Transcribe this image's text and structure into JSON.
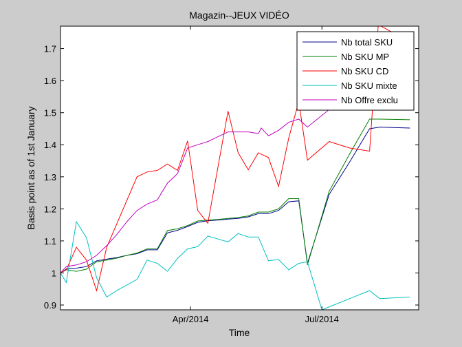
{
  "chart_data": {
    "type": "line",
    "title": "Magazin--JEUX VIDÉO",
    "xlabel": "Time",
    "ylabel": "Basis point as of 1st January",
    "xlim": [
      "2014-01-01",
      "2014-09-06"
    ],
    "ylim": [
      0.885,
      1.77
    ],
    "grid": false,
    "legend_position": "top-right",
    "x_ticks": [
      {
        "date": "2014-04-01",
        "label": "Apr/2014"
      },
      {
        "date": "2014-07-01",
        "label": "Jul/2014"
      }
    ],
    "y_ticks": [
      {
        "value": 0.9,
        "label": "0.9"
      },
      {
        "value": 1.0,
        "label": "1"
      },
      {
        "value": 1.1,
        "label": "1.1"
      },
      {
        "value": 1.2,
        "label": "1.2"
      },
      {
        "value": 1.3,
        "label": "1.3"
      },
      {
        "value": 1.4,
        "label": "1.4"
      },
      {
        "value": 1.5,
        "label": "1.5"
      },
      {
        "value": 1.6,
        "label": "1.6"
      },
      {
        "value": 1.7,
        "label": "1.7"
      }
    ],
    "series": [
      {
        "name": "Nb total SKU",
        "color": "#00008b",
        "points": [
          [
            "2014-01-01",
            1.0
          ],
          [
            "2014-01-05",
            1.012
          ],
          [
            "2014-01-12",
            1.015
          ],
          [
            "2014-01-19",
            1.02
          ],
          [
            "2014-01-26",
            1.038
          ],
          [
            "2014-02-02",
            1.043
          ],
          [
            "2014-02-09",
            1.048
          ],
          [
            "2014-02-16",
            1.055
          ],
          [
            "2014-02-23",
            1.06
          ],
          [
            "2014-03-02",
            1.072
          ],
          [
            "2014-03-09",
            1.072
          ],
          [
            "2014-03-16",
            1.125
          ],
          [
            "2014-03-23",
            1.133
          ],
          [
            "2014-03-30",
            1.145
          ],
          [
            "2014-04-06",
            1.158
          ],
          [
            "2014-04-13",
            1.163
          ],
          [
            "2014-04-20",
            1.165
          ],
          [
            "2014-04-27",
            1.168
          ],
          [
            "2014-05-04",
            1.17
          ],
          [
            "2014-05-11",
            1.175
          ],
          [
            "2014-05-18",
            1.185
          ],
          [
            "2014-05-25",
            1.185
          ],
          [
            "2014-06-01",
            1.195
          ],
          [
            "2014-06-08",
            1.222
          ],
          [
            "2014-06-15",
            1.225
          ],
          [
            "2014-06-21",
            1.03
          ],
          [
            "2014-07-06",
            1.245
          ],
          [
            "2014-07-20",
            1.345
          ],
          [
            "2014-08-03",
            1.45
          ],
          [
            "2014-08-10",
            1.455
          ],
          [
            "2014-08-31",
            1.452
          ]
        ]
      },
      {
        "name": "Nb SKU MP",
        "color": "#007f00",
        "points": [
          [
            "2014-01-01",
            1.0
          ],
          [
            "2014-01-05",
            1.01
          ],
          [
            "2014-01-12",
            1.005
          ],
          [
            "2014-01-19",
            1.012
          ],
          [
            "2014-01-26",
            1.035
          ],
          [
            "2014-02-02",
            1.04
          ],
          [
            "2014-02-09",
            1.046
          ],
          [
            "2014-02-16",
            1.055
          ],
          [
            "2014-02-23",
            1.062
          ],
          [
            "2014-03-02",
            1.075
          ],
          [
            "2014-03-09",
            1.075
          ],
          [
            "2014-03-16",
            1.132
          ],
          [
            "2014-03-23",
            1.138
          ],
          [
            "2014-03-30",
            1.148
          ],
          [
            "2014-04-06",
            1.162
          ],
          [
            "2014-04-13",
            1.165
          ],
          [
            "2014-04-20",
            1.167
          ],
          [
            "2014-04-27",
            1.17
          ],
          [
            "2014-05-04",
            1.173
          ],
          [
            "2014-05-11",
            1.178
          ],
          [
            "2014-05-18",
            1.19
          ],
          [
            "2014-05-25",
            1.19
          ],
          [
            "2014-06-01",
            1.2
          ],
          [
            "2014-06-08",
            1.232
          ],
          [
            "2014-06-15",
            1.232
          ],
          [
            "2014-06-21",
            1.025
          ],
          [
            "2014-07-06",
            1.255
          ],
          [
            "2014-07-20",
            1.37
          ],
          [
            "2014-08-03",
            1.48
          ],
          [
            "2014-08-10",
            1.48
          ],
          [
            "2014-08-31",
            1.478
          ]
        ]
      },
      {
        "name": "Nb SKU CD",
        "color": "#ff0000",
        "points": [
          [
            "2014-01-01",
            1.0
          ],
          [
            "2014-01-05",
            1.01
          ],
          [
            "2014-01-12",
            1.08
          ],
          [
            "2014-01-19",
            1.04
          ],
          [
            "2014-01-26",
            0.945
          ],
          [
            "2014-02-02",
            1.08
          ],
          [
            "2014-02-23",
            1.3
          ],
          [
            "2014-03-02",
            1.315
          ],
          [
            "2014-03-09",
            1.32
          ],
          [
            "2014-03-16",
            1.34
          ],
          [
            "2014-03-23",
            1.32
          ],
          [
            "2014-03-30",
            1.412
          ],
          [
            "2014-04-06",
            1.195
          ],
          [
            "2014-04-13",
            1.155
          ],
          [
            "2014-04-27",
            1.505
          ],
          [
            "2014-05-04",
            1.375
          ],
          [
            "2014-05-11",
            1.322
          ],
          [
            "2014-05-18",
            1.375
          ],
          [
            "2014-05-25",
            1.36
          ],
          [
            "2014-06-01",
            1.27
          ],
          [
            "2014-06-08",
            1.42
          ],
          [
            "2014-06-15",
            1.535
          ],
          [
            "2014-06-21",
            1.352
          ],
          [
            "2014-07-06",
            1.41
          ],
          [
            "2014-07-20",
            1.39
          ],
          [
            "2014-08-03",
            1.38
          ],
          [
            "2014-08-09",
            1.775
          ],
          [
            "2014-08-31",
            1.72
          ]
        ]
      },
      {
        "name": "Nb SKU mixte",
        "color": "#00bfbf",
        "points": [
          [
            "2014-01-01",
            1.0
          ],
          [
            "2014-01-05",
            0.97
          ],
          [
            "2014-01-12",
            1.16
          ],
          [
            "2014-01-19",
            1.11
          ],
          [
            "2014-01-26",
            0.985
          ],
          [
            "2014-02-02",
            0.925
          ],
          [
            "2014-02-09",
            0.945
          ],
          [
            "2014-02-23",
            0.98
          ],
          [
            "2014-03-02",
            1.04
          ],
          [
            "2014-03-09",
            1.03
          ],
          [
            "2014-03-16",
            1.005
          ],
          [
            "2014-03-23",
            1.045
          ],
          [
            "2014-03-30",
            1.075
          ],
          [
            "2014-04-06",
            1.082
          ],
          [
            "2014-04-13",
            1.115
          ],
          [
            "2014-04-27",
            1.097
          ],
          [
            "2014-05-04",
            1.123
          ],
          [
            "2014-05-11",
            1.112
          ],
          [
            "2014-05-18",
            1.112
          ],
          [
            "2014-05-25",
            1.038
          ],
          [
            "2014-06-01",
            1.042
          ],
          [
            "2014-06-08",
            1.01
          ],
          [
            "2014-06-15",
            1.03
          ],
          [
            "2014-06-21",
            1.035
          ],
          [
            "2014-07-01",
            0.885
          ],
          [
            "2014-08-03",
            0.945
          ],
          [
            "2014-08-10",
            0.92
          ],
          [
            "2014-08-31",
            0.925
          ]
        ]
      },
      {
        "name": "Nb Offre exclu",
        "color": "#bf00bf",
        "points": [
          [
            "2014-01-01",
            1.0
          ],
          [
            "2014-01-05",
            1.02
          ],
          [
            "2014-01-12",
            1.025
          ],
          [
            "2014-01-19",
            1.035
          ],
          [
            "2014-01-26",
            1.055
          ],
          [
            "2014-02-02",
            1.085
          ],
          [
            "2014-02-09",
            1.12
          ],
          [
            "2014-02-16",
            1.16
          ],
          [
            "2014-02-23",
            1.195
          ],
          [
            "2014-03-02",
            1.215
          ],
          [
            "2014-03-09",
            1.228
          ],
          [
            "2014-03-16",
            1.28
          ],
          [
            "2014-03-23",
            1.31
          ],
          [
            "2014-03-30",
            1.39
          ],
          [
            "2014-04-06",
            1.4
          ],
          [
            "2014-04-13",
            1.41
          ],
          [
            "2014-04-20",
            1.425
          ],
          [
            "2014-04-27",
            1.44
          ],
          [
            "2014-05-04",
            1.44
          ],
          [
            "2014-05-11",
            1.44
          ],
          [
            "2014-05-18",
            1.435
          ],
          [
            "2014-05-20",
            1.452
          ],
          [
            "2014-05-25",
            1.428
          ],
          [
            "2014-06-01",
            1.445
          ],
          [
            "2014-06-08",
            1.47
          ],
          [
            "2014-06-15",
            1.48
          ],
          [
            "2014-06-21",
            1.455
          ],
          [
            "2014-07-06",
            1.51
          ],
          [
            "2014-08-03",
            1.57
          ],
          [
            "2014-08-31",
            1.59
          ]
        ]
      }
    ]
  }
}
